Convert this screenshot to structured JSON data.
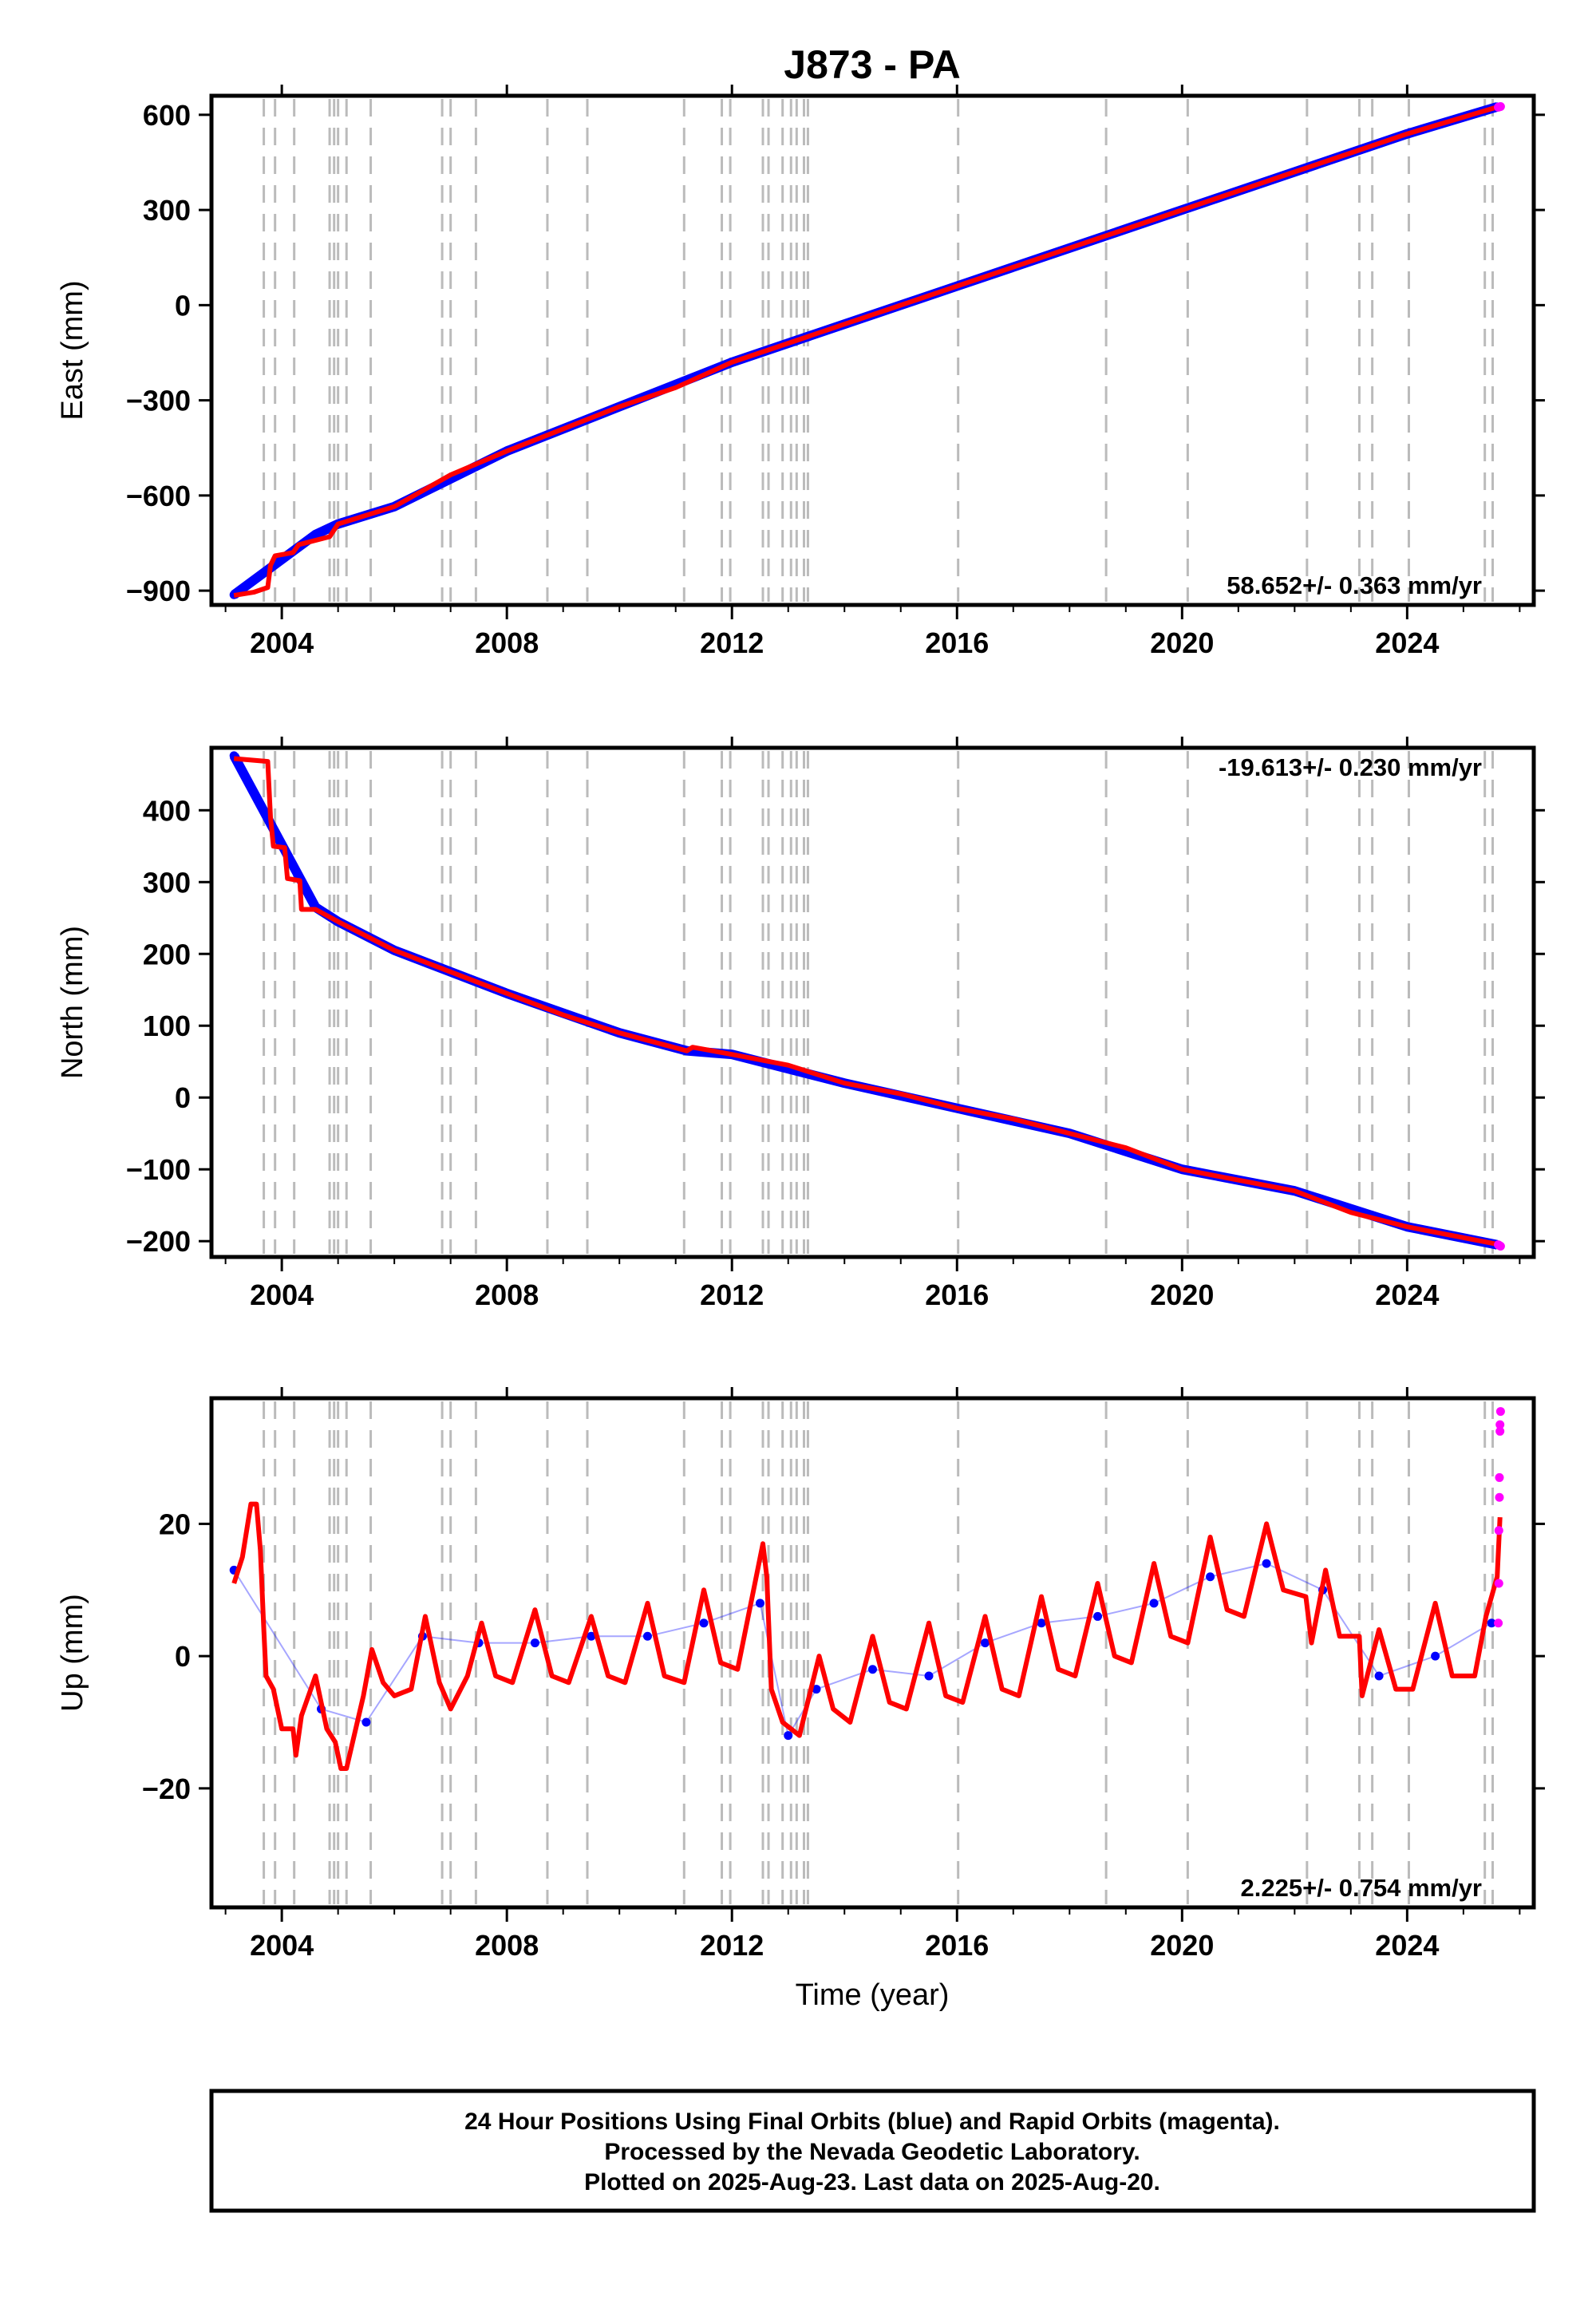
{
  "title": "J873 - PA",
  "x_axis_label": "Time (year)",
  "footer": {
    "line1": "24 Hour Positions Using Final Orbits (blue) and Rapid Orbits (magenta).",
    "line2": "Processed by the Nevada Geodetic Laboratory.",
    "line3": "Plotted on 2025-Aug-23. Last data on 2025-Aug-20."
  },
  "colors": {
    "final_orbits": "#0000ff",
    "rapid_orbits": "#ff00ff",
    "model_fit": "#ff0000",
    "event_lines": "#bbbbbb",
    "frame": "#000000"
  },
  "chart_data": [
    {
      "type": "scatter",
      "panel": "east",
      "ylabel": "East (mm)",
      "rate_text": "58.652+/- 0.363 mm/yr",
      "xlim": [
        2002.75,
        2026.25
      ],
      "ylim": [
        -945,
        660
      ],
      "xticks": [
        2004,
        2008,
        2012,
        2016,
        2020,
        2024
      ],
      "yticks": [
        -900,
        -600,
        -300,
        0,
        300,
        600
      ],
      "grid": false,
      "events": [
        2003.68,
        2003.88,
        2004.22,
        2004.85,
        2004.93,
        2005.0,
        2005.15,
        2005.58,
        2006.85,
        2007.0,
        2007.45,
        2008.72,
        2009.43,
        2011.15,
        2011.82,
        2011.97,
        2012.55,
        2012.65,
        2012.9,
        2013.05,
        2013.15,
        2013.28,
        2013.35,
        2016.02,
        2018.65,
        2020.1,
        2022.22,
        2023.15,
        2023.38,
        2024.03,
        2025.38,
        2025.52
      ],
      "series": [
        {
          "name": "Final Orbits",
          "values": [
            [
              2003.15,
              -913
            ],
            [
              2004.6,
              -723
            ],
            [
              2005.0,
              -690
            ],
            [
              2006.0,
              -635
            ],
            [
              2008.0,
              -460
            ],
            [
              2010.0,
              -320
            ],
            [
              2012.0,
              -180
            ],
            [
              2014.0,
              -60
            ],
            [
              2016.0,
              60
            ],
            [
              2018.0,
              180
            ],
            [
              2020.0,
              300
            ],
            [
              2022.0,
              420
            ],
            [
              2024.0,
              540
            ],
            [
              2025.6,
              625
            ]
          ]
        },
        {
          "name": "Rapid Orbits",
          "values": [
            [
              2025.62,
              624
            ],
            [
              2025.64,
              625
            ],
            [
              2025.66,
              626
            ]
          ]
        }
      ],
      "model": [
        [
          2003.15,
          -915
        ],
        [
          2003.5,
          -905
        ],
        [
          2003.75,
          -890
        ],
        [
          2003.8,
          -820
        ],
        [
          2003.88,
          -790
        ],
        [
          2004.2,
          -780
        ],
        [
          2004.3,
          -755
        ],
        [
          2004.85,
          -730
        ],
        [
          2005.0,
          -690
        ],
        [
          2006.0,
          -635
        ],
        [
          2007.0,
          -535
        ],
        [
          2008.0,
          -460
        ],
        [
          2009.0,
          -390
        ],
        [
          2010.0,
          -320
        ],
        [
          2011.0,
          -260
        ],
        [
          2012.0,
          -180
        ],
        [
          2013.0,
          -120
        ],
        [
          2014.0,
          -60
        ],
        [
          2015.0,
          0
        ],
        [
          2016.0,
          60
        ],
        [
          2017.0,
          120
        ],
        [
          2018.0,
          180
        ],
        [
          2019.0,
          240
        ],
        [
          2020.0,
          300
        ],
        [
          2021.0,
          360
        ],
        [
          2022.0,
          420
        ],
        [
          2023.0,
          480
        ],
        [
          2024.0,
          540
        ],
        [
          2025.65,
          627
        ]
      ]
    },
    {
      "type": "scatter",
      "panel": "north",
      "ylabel": "North (mm)",
      "rate_text": "-19.613+/- 0.230 mm/yr",
      "xlim": [
        2002.75,
        2026.25
      ],
      "ylim": [
        -222,
        487
      ],
      "xticks": [
        2004,
        2008,
        2012,
        2016,
        2020,
        2024
      ],
      "yticks": [
        -200,
        -100,
        0,
        100,
        200,
        300,
        400
      ],
      "grid": false,
      "events": [
        2003.68,
        2003.88,
        2004.22,
        2004.85,
        2004.93,
        2005.0,
        2005.15,
        2005.58,
        2006.85,
        2007.0,
        2007.45,
        2008.72,
        2009.43,
        2011.15,
        2011.82,
        2011.97,
        2012.55,
        2012.65,
        2012.9,
        2013.05,
        2013.15,
        2013.28,
        2013.35,
        2016.02,
        2018.65,
        2020.1,
        2022.22,
        2023.15,
        2023.38,
        2024.03,
        2025.38,
        2025.52
      ],
      "series": [
        {
          "name": "Final Orbits",
          "values": [
            [
              2003.15,
              476
            ],
            [
              2004.6,
              265
            ],
            [
              2005.0,
              245
            ],
            [
              2006.0,
              205
            ],
            [
              2008.0,
              145
            ],
            [
              2010.0,
              90
            ],
            [
              2011.2,
              65
            ],
            [
              2012.0,
              60
            ],
            [
              2014.0,
              20
            ],
            [
              2016.0,
              -15
            ],
            [
              2018.0,
              -50
            ],
            [
              2020.0,
              -100
            ],
            [
              2022.0,
              -130
            ],
            [
              2024.0,
              -180
            ],
            [
              2025.6,
              -205
            ]
          ]
        },
        {
          "name": "Rapid Orbits",
          "values": [
            [
              2025.62,
              -205
            ],
            [
              2025.64,
              -206
            ],
            [
              2025.66,
              -207
            ]
          ]
        }
      ],
      "model": [
        [
          2003.15,
          472
        ],
        [
          2003.75,
          468
        ],
        [
          2003.8,
          390
        ],
        [
          2003.85,
          350
        ],
        [
          2004.05,
          348
        ],
        [
          2004.1,
          305
        ],
        [
          2004.32,
          302
        ],
        [
          2004.35,
          262
        ],
        [
          2004.6,
          262
        ],
        [
          2005.0,
          245
        ],
        [
          2006.0,
          205
        ],
        [
          2007.0,
          175
        ],
        [
          2008.0,
          145
        ],
        [
          2009.0,
          115
        ],
        [
          2010.0,
          90
        ],
        [
          2011.2,
          65
        ],
        [
          2011.3,
          70
        ],
        [
          2012.0,
          60
        ],
        [
          2013.0,
          45
        ],
        [
          2014.0,
          20
        ],
        [
          2015.0,
          5
        ],
        [
          2016.0,
          -15
        ],
        [
          2017.0,
          -30
        ],
        [
          2018.0,
          -50
        ],
        [
          2019.0,
          -70
        ],
        [
          2020.0,
          -100
        ],
        [
          2021.0,
          -115
        ],
        [
          2022.0,
          -130
        ],
        [
          2023.0,
          -160
        ],
        [
          2024.0,
          -180
        ],
        [
          2025.65,
          -205
        ]
      ]
    },
    {
      "type": "scatter",
      "panel": "up",
      "ylabel": "Up (mm)",
      "rate_text": "2.225+/- 0.754 mm/yr",
      "xlim": [
        2002.75,
        2026.25
      ],
      "ylim": [
        -38,
        39
      ],
      "xticks": [
        2004,
        2008,
        2012,
        2016,
        2020,
        2024
      ],
      "yticks": [
        -20,
        0,
        20
      ],
      "grid": false,
      "events": [
        2003.68,
        2003.88,
        2004.22,
        2004.85,
        2004.93,
        2005.0,
        2005.15,
        2005.58,
        2006.85,
        2007.0,
        2007.45,
        2008.72,
        2009.43,
        2011.15,
        2011.82,
        2011.97,
        2012.55,
        2012.65,
        2012.9,
        2013.05,
        2013.15,
        2013.28,
        2013.35,
        2016.02,
        2018.65,
        2020.1,
        2022.22,
        2023.15,
        2023.38,
        2024.03,
        2025.38,
        2025.52
      ],
      "series": [
        {
          "name": "Final Orbits",
          "values": [
            [
              2003.15,
              13
            ],
            [
              2004.7,
              -8
            ],
            [
              2005.5,
              -10
            ],
            [
              2006.5,
              3
            ],
            [
              2007.5,
              2
            ],
            [
              2008.5,
              2
            ],
            [
              2009.5,
              3
            ],
            [
              2010.5,
              3
            ],
            [
              2011.5,
              5
            ],
            [
              2012.5,
              8
            ],
            [
              2013.0,
              -12
            ],
            [
              2013.5,
              -5
            ],
            [
              2014.5,
              -2
            ],
            [
              2015.5,
              -3
            ],
            [
              2016.5,
              2
            ],
            [
              2017.5,
              5
            ],
            [
              2018.5,
              6
            ],
            [
              2019.5,
              8
            ],
            [
              2020.5,
              12
            ],
            [
              2021.5,
              14
            ],
            [
              2022.5,
              10
            ],
            [
              2023.5,
              -3
            ],
            [
              2024.5,
              0
            ],
            [
              2025.5,
              5
            ]
          ]
        },
        {
          "name": "Rapid Orbits",
          "values": [
            [
              2025.62,
              5
            ],
            [
              2025.63,
              11
            ],
            [
              2025.63,
              19
            ],
            [
              2025.64,
              24
            ],
            [
              2025.64,
              27
            ],
            [
              2025.65,
              34
            ],
            [
              2025.65,
              35
            ],
            [
              2025.66,
              37
            ]
          ]
        }
      ],
      "model": [
        [
          2003.15,
          11
        ],
        [
          2003.3,
          15
        ],
        [
          2003.45,
          23
        ],
        [
          2003.55,
          23
        ],
        [
          2003.62,
          16
        ],
        [
          2003.68,
          4
        ],
        [
          2003.72,
          -3
        ],
        [
          2003.85,
          -5
        ],
        [
          2004.0,
          -11
        ],
        [
          2004.2,
          -11
        ],
        [
          2004.25,
          -15
        ],
        [
          2004.35,
          -9
        ],
        [
          2004.6,
          -3
        ],
        [
          2004.8,
          -11
        ],
        [
          2004.95,
          -13
        ],
        [
          2005.05,
          -17
        ],
        [
          2005.15,
          -17
        ],
        [
          2005.45,
          -6
        ],
        [
          2005.6,
          1
        ],
        [
          2005.8,
          -4
        ],
        [
          2006.0,
          -6
        ],
        [
          2006.3,
          -5
        ],
        [
          2006.55,
          6
        ],
        [
          2006.8,
          -4
        ],
        [
          2007.0,
          -8
        ],
        [
          2007.3,
          -3
        ],
        [
          2007.55,
          5
        ],
        [
          2007.8,
          -3
        ],
        [
          2008.1,
          -4
        ],
        [
          2008.5,
          7
        ],
        [
          2008.8,
          -3
        ],
        [
          2009.1,
          -4
        ],
        [
          2009.5,
          6
        ],
        [
          2009.8,
          -3
        ],
        [
          2010.1,
          -4
        ],
        [
          2010.5,
          8
        ],
        [
          2010.8,
          -3
        ],
        [
          2011.15,
          -4
        ],
        [
          2011.5,
          10
        ],
        [
          2011.8,
          -1
        ],
        [
          2012.1,
          -2
        ],
        [
          2012.55,
          17
        ],
        [
          2012.62,
          12
        ],
        [
          2012.7,
          -5
        ],
        [
          2012.9,
          -10
        ],
        [
          2013.2,
          -12
        ],
        [
          2013.55,
          0
        ],
        [
          2013.8,
          -8
        ],
        [
          2014.1,
          -10
        ],
        [
          2014.5,
          3
        ],
        [
          2014.8,
          -7
        ],
        [
          2015.1,
          -8
        ],
        [
          2015.5,
          5
        ],
        [
          2015.8,
          -6
        ],
        [
          2016.1,
          -7
        ],
        [
          2016.5,
          6
        ],
        [
          2016.8,
          -5
        ],
        [
          2017.1,
          -6
        ],
        [
          2017.5,
          9
        ],
        [
          2017.8,
          -2
        ],
        [
          2018.1,
          -3
        ],
        [
          2018.5,
          11
        ],
        [
          2018.8,
          0
        ],
        [
          2019.1,
          -1
        ],
        [
          2019.5,
          14
        ],
        [
          2019.8,
          3
        ],
        [
          2020.1,
          2
        ],
        [
          2020.5,
          18
        ],
        [
          2020.8,
          7
        ],
        [
          2021.1,
          6
        ],
        [
          2021.5,
          20
        ],
        [
          2021.8,
          10
        ],
        [
          2022.2,
          9
        ],
        [
          2022.3,
          2
        ],
        [
          2022.55,
          13
        ],
        [
          2022.8,
          3
        ],
        [
          2023.15,
          3
        ],
        [
          2023.2,
          -6
        ],
        [
          2023.5,
          4
        ],
        [
          2023.8,
          -5
        ],
        [
          2024.1,
          -5
        ],
        [
          2024.5,
          8
        ],
        [
          2024.8,
          -3
        ],
        [
          2025.2,
          -3
        ],
        [
          2025.4,
          6
        ],
        [
          2025.6,
          12
        ],
        [
          2025.65,
          21
        ]
      ]
    }
  ]
}
